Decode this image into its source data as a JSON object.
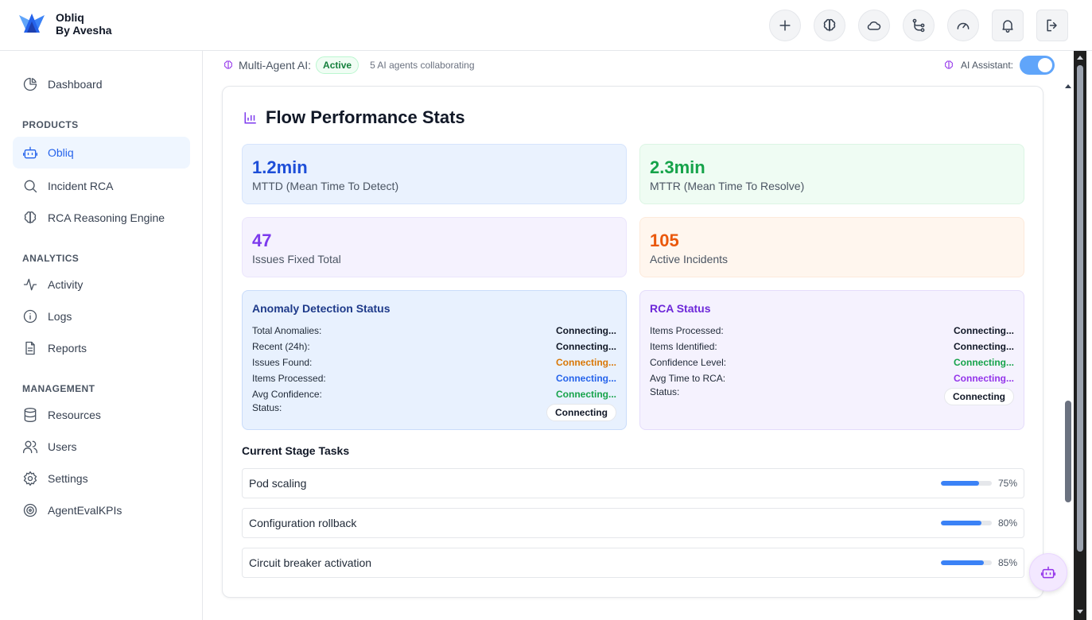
{
  "brand": {
    "name": "Obliq",
    "sub": "By Avesha",
    "logo_icon": "crown-logo-icon"
  },
  "header_icons": [
    "plus-icon",
    "brain-icon",
    "cloud-icon",
    "git-branch-icon",
    "gauge-icon",
    "bell-icon",
    "logout-icon"
  ],
  "sidebar": {
    "dashboard": "Dashboard",
    "sections": {
      "products": "PRODUCTS",
      "analytics": "ANALYTICS",
      "management": "MANAGEMENT"
    },
    "items": {
      "obliq": "Obliq",
      "incident_rca": "Incident RCA",
      "rca_engine": "RCA Reasoning Engine",
      "activity": "Activity",
      "logs": "Logs",
      "reports": "Reports",
      "resources": "Resources",
      "users": "Users",
      "settings": "Settings",
      "agentevalkpis": "AgentEvalKPIs"
    }
  },
  "subbar": {
    "label": "Multi-Agent AI:",
    "status": "Active",
    "collab": "5 AI agents collaborating",
    "assistant_label": "AI Assistant:",
    "assistant_on": true
  },
  "main": {
    "title": "Flow Performance Stats",
    "stats": {
      "mttd": {
        "value": "1.2min",
        "label": "MTTD (Mean Time To Detect)"
      },
      "mttr": {
        "value": "2.3min",
        "label": "MTTR (Mean Time To Resolve)"
      },
      "fixed": {
        "value": "47",
        "label": "Issues Fixed Total"
      },
      "incidents": {
        "value": "105",
        "label": "Active Incidents"
      }
    },
    "anomaly": {
      "title": "Anomaly Detection Status",
      "rows": [
        {
          "k": "Total Anomalies:",
          "v": "Connecting..."
        },
        {
          "k": "Recent (24h):",
          "v": "Connecting..."
        },
        {
          "k": "Issues Found:",
          "v": "Connecting..."
        },
        {
          "k": "Items Processed:",
          "v": "Connecting..."
        },
        {
          "k": "Avg Confidence:",
          "v": "Connecting..."
        }
      ],
      "status_label": "Status:",
      "status_value": "Connecting"
    },
    "rca": {
      "title": "RCA Status",
      "rows": [
        {
          "k": "Items Processed:",
          "v": "Connecting..."
        },
        {
          "k": "Items Identified:",
          "v": "Connecting..."
        },
        {
          "k": "Confidence Level:",
          "v": "Connecting..."
        },
        {
          "k": "Avg Time to RCA:",
          "v": "Connecting..."
        }
      ],
      "status_label": "Status:",
      "status_value": "Connecting"
    },
    "tasks_title": "Current Stage Tasks",
    "tasks": [
      {
        "label": "Pod scaling",
        "pct": "75%",
        "progress": 0.75
      },
      {
        "label": "Configuration rollback",
        "pct": "80%",
        "progress": 0.8
      },
      {
        "label": "Circuit breaker activation",
        "pct": "85%",
        "progress": 0.85
      }
    ]
  },
  "colors": {
    "accent": "#2563eb",
    "green": "#16a34a",
    "purple": "#7c3aed",
    "orange": "#ea580c",
    "amber": "#d97706"
  }
}
